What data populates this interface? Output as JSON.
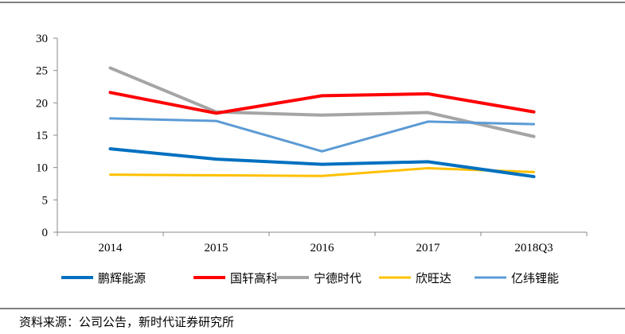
{
  "chart_data": {
    "type": "line",
    "title": "",
    "xlabel": "",
    "ylabel": "",
    "categories": [
      "2014",
      "2015",
      "2016",
      "2017",
      "2018Q3"
    ],
    "ylim": [
      0,
      30
    ],
    "yticks": [
      "0",
      "5",
      "10",
      "15",
      "20",
      "25",
      "30"
    ],
    "grid": false,
    "legend_position": "bottom",
    "series": [
      {
        "name": "鹏辉能源",
        "color": "#0070C0",
        "values": [
          12.9,
          11.3,
          10.5,
          10.9,
          8.6
        ]
      },
      {
        "name": "国轩高科",
        "color": "#FF0000",
        "values": [
          21.6,
          18.4,
          21.1,
          21.4,
          18.6
        ]
      },
      {
        "name": "宁德时代",
        "color": "#A5A5A5",
        "values": [
          25.4,
          18.6,
          18.1,
          18.5,
          14.8
        ]
      },
      {
        "name": "欣旺达",
        "color": "#FFC000",
        "values": [
          8.9,
          8.8,
          8.7,
          9.9,
          9.3
        ]
      },
      {
        "name": "亿纬锂能",
        "color": "#5B9BD5",
        "values": [
          17.6,
          17.2,
          12.5,
          17.1,
          16.7
        ]
      }
    ]
  },
  "source": "资料来源：公司公告，新时代证券研究所"
}
